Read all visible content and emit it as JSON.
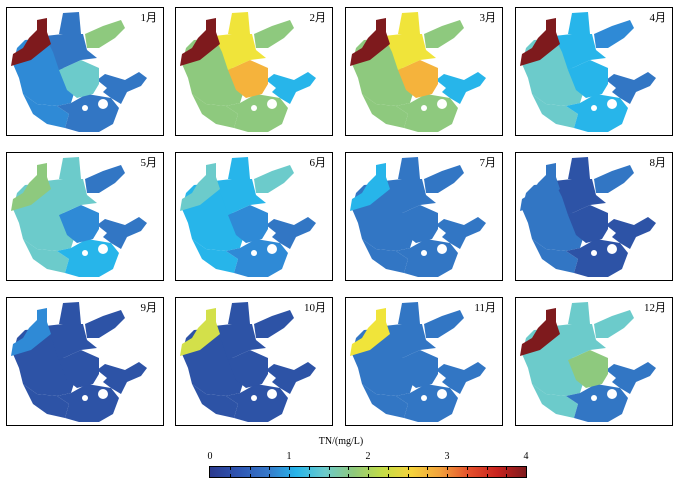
{
  "colorbar": {
    "title": "TN/(mg/L)",
    "min": 0,
    "max": 4,
    "ticks": [
      "0",
      "1",
      "2",
      "3",
      "4"
    ],
    "minor_step": 0.25,
    "colors": [
      "#2b3a8f",
      "#2e55b2",
      "#3778c9",
      "#27b5ea",
      "#6ccbcb",
      "#8fc97c",
      "#c3dd46",
      "#f5d33c",
      "#f2a23c",
      "#e5512d",
      "#c8231f",
      "#7e1a1d"
    ]
  },
  "region_colors": {
    "tn_0_6": "#2d53a6",
    "tn_0_9": "#3276c4",
    "tn_1_0": "#2f8ad6",
    "tn_1_3": "#27b5ea",
    "tn_1_6": "#6ccbcb",
    "tn_1_9": "#8ec97e",
    "tn_2_4": "#d3e04a",
    "tn_2_5": "#f0e43a",
    "tn_2_9": "#f5b33c",
    "tn_4_0": "#7e1a1d"
  },
  "months": [
    {
      "label": "1月",
      "colors": {
        "nw": "tn_4_0",
        "nc": "tn_0_9",
        "ne": "tn_1_9",
        "c": "tn_1_6",
        "e": "tn_0_9",
        "w": "tn_1_0",
        "s": "tn_0_9",
        "sw": "tn_1_0"
      }
    },
    {
      "label": "2月",
      "colors": {
        "nw": "tn_4_0",
        "nc": "tn_2_5",
        "ne": "tn_1_9",
        "c": "tn_2_9",
        "e": "tn_1_3",
        "w": "tn_1_9",
        "s": "tn_1_9",
        "sw": "tn_1_9"
      }
    },
    {
      "label": "3月",
      "colors": {
        "nw": "tn_4_0",
        "nc": "tn_2_5",
        "ne": "tn_1_9",
        "c": "tn_2_9",
        "e": "tn_1_3",
        "w": "tn_1_9",
        "s": "tn_1_9",
        "sw": "tn_1_9"
      }
    },
    {
      "label": "4月",
      "colors": {
        "nw": "tn_4_0",
        "nc": "tn_1_3",
        "ne": "tn_1_0",
        "c": "tn_1_3",
        "e": "tn_0_9",
        "w": "tn_1_6",
        "s": "tn_1_3",
        "sw": "tn_1_6"
      }
    },
    {
      "label": "5月",
      "colors": {
        "nw": "tn_1_9",
        "nc": "tn_1_6",
        "ne": "tn_0_9",
        "c": "tn_1_0",
        "e": "tn_0_9",
        "w": "tn_1_6",
        "s": "tn_1_3",
        "sw": "tn_1_6"
      }
    },
    {
      "label": "6月",
      "colors": {
        "nw": "tn_1_6",
        "nc": "tn_1_3",
        "ne": "tn_1_6",
        "c": "tn_1_0",
        "e": "tn_0_9",
        "w": "tn_1_3",
        "s": "tn_1_0",
        "sw": "tn_1_3"
      }
    },
    {
      "label": "7月",
      "colors": {
        "nw": "tn_1_3",
        "nc": "tn_0_9",
        "ne": "tn_0_9",
        "c": "tn_0_9",
        "e": "tn_0_9",
        "w": "tn_0_9",
        "s": "tn_0_9",
        "sw": "tn_0_9"
      }
    },
    {
      "label": "8月",
      "colors": {
        "nw": "tn_0_9",
        "nc": "tn_0_6",
        "ne": "tn_0_9",
        "c": "tn_0_6",
        "e": "tn_0_6",
        "w": "tn_0_9",
        "s": "tn_0_6",
        "sw": "tn_0_9"
      }
    },
    {
      "label": "9月",
      "colors": {
        "nw": "tn_1_0",
        "nc": "tn_0_6",
        "ne": "tn_0_6",
        "c": "tn_0_6",
        "e": "tn_0_6",
        "w": "tn_0_6",
        "s": "tn_0_6",
        "sw": "tn_0_6"
      }
    },
    {
      "label": "10月",
      "colors": {
        "nw": "tn_2_4",
        "nc": "tn_0_6",
        "ne": "tn_0_6",
        "c": "tn_0_6",
        "e": "tn_0_6",
        "w": "tn_0_6",
        "s": "tn_0_6",
        "sw": "tn_0_6"
      }
    },
    {
      "label": "11月",
      "colors": {
        "nw": "tn_2_5",
        "nc": "tn_0_9",
        "ne": "tn_0_9",
        "c": "tn_0_9",
        "e": "tn_0_9",
        "w": "tn_0_9",
        "s": "tn_0_9",
        "sw": "tn_0_9"
      }
    },
    {
      "label": "12月",
      "colors": {
        "nw": "tn_4_0",
        "nc": "tn_1_6",
        "ne": "tn_1_6",
        "c": "tn_1_9",
        "e": "tn_0_9",
        "w": "tn_1_6",
        "s": "tn_0_9",
        "sw": "tn_1_6"
      }
    }
  ]
}
